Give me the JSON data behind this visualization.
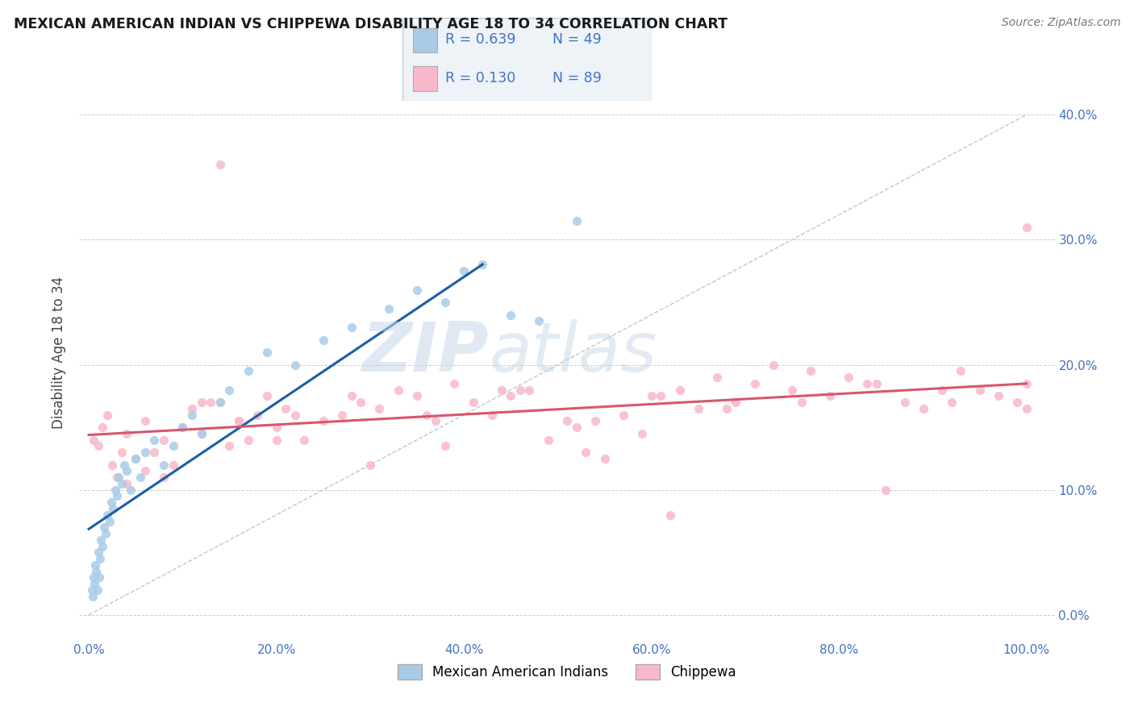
{
  "title": "MEXICAN AMERICAN INDIAN VS CHIPPEWA DISABILITY AGE 18 TO 34 CORRELATION CHART",
  "source": "Source: ZipAtlas.com",
  "ylabel": "Disability Age 18 to 34",
  "xticklabels": [
    "0.0%",
    "20.0%",
    "40.0%",
    "60.0%",
    "80.0%",
    "100.0%"
  ],
  "yticklabels": [
    "0.0%",
    "10.0%",
    "20.0%",
    "30.0%",
    "40.0%"
  ],
  "blue_fill": "#a8cce8",
  "pink_fill": "#f9b8ca",
  "blue_line_color": "#1a5fa8",
  "pink_line_color": "#d9556e",
  "diag_color": "#b8c8d8",
  "grid_color": "#cccccc",
  "text_color": "#4472c4",
  "title_color": "#1a1a1a",
  "legend_label1": "Mexican American Indians",
  "legend_label2": "Chippewa",
  "R1": "0.639",
  "N1": "49",
  "R2": "0.130",
  "N2": "89",
  "watermark_zip": "ZIP",
  "watermark_atlas": "atlas",
  "blue_x": [
    0.3,
    0.4,
    0.5,
    0.6,
    0.7,
    0.8,
    0.9,
    1.0,
    1.1,
    1.2,
    1.3,
    1.5,
    1.6,
    1.8,
    2.0,
    2.2,
    2.4,
    2.6,
    2.8,
    3.0,
    3.2,
    3.5,
    3.8,
    4.0,
    4.5,
    5.0,
    5.5,
    6.0,
    7.0,
    8.0,
    9.0,
    10.0,
    11.0,
    12.0,
    14.0,
    15.0,
    17.0,
    19.0,
    22.0,
    25.0,
    28.0,
    32.0,
    35.0,
    38.0,
    40.0,
    42.0,
    45.0,
    48.0,
    52.0
  ],
  "blue_y": [
    2.0,
    1.5,
    3.0,
    2.5,
    4.0,
    3.5,
    2.0,
    5.0,
    3.0,
    4.5,
    6.0,
    5.5,
    7.0,
    6.5,
    8.0,
    7.5,
    9.0,
    8.5,
    10.0,
    9.5,
    11.0,
    10.5,
    12.0,
    11.5,
    10.0,
    12.5,
    11.0,
    13.0,
    14.0,
    12.0,
    13.5,
    15.0,
    16.0,
    14.5,
    17.0,
    18.0,
    19.5,
    21.0,
    20.0,
    22.0,
    23.0,
    24.5,
    26.0,
    25.0,
    27.5,
    28.0,
    24.0,
    23.5,
    31.5
  ],
  "pink_x": [
    0.5,
    1.0,
    1.5,
    2.0,
    2.5,
    3.0,
    3.5,
    4.0,
    5.0,
    6.0,
    7.0,
    8.0,
    9.0,
    10.0,
    11.0,
    12.0,
    13.0,
    14.0,
    15.0,
    16.0,
    17.0,
    18.0,
    19.0,
    20.0,
    21.0,
    23.0,
    25.0,
    27.0,
    29.0,
    31.0,
    33.0,
    35.0,
    37.0,
    39.0,
    41.0,
    43.0,
    45.0,
    47.0,
    49.0,
    51.0,
    53.0,
    55.0,
    57.0,
    59.0,
    61.0,
    63.0,
    65.0,
    67.0,
    69.0,
    71.0,
    73.0,
    75.0,
    77.0,
    79.0,
    81.0,
    83.0,
    85.0,
    87.0,
    89.0,
    91.0,
    93.0,
    95.0,
    97.0,
    99.0,
    100.0,
    4.0,
    8.0,
    12.0,
    16.0,
    20.0,
    28.0,
    36.0,
    44.0,
    52.0,
    60.0,
    68.0,
    76.0,
    84.0,
    92.0,
    100.0,
    6.0,
    14.0,
    22.0,
    30.0,
    38.0,
    46.0,
    54.0,
    62.0,
    100.0
  ],
  "pink_y": [
    14.0,
    13.5,
    15.0,
    16.0,
    12.0,
    11.0,
    13.0,
    14.5,
    12.5,
    11.5,
    13.0,
    14.0,
    12.0,
    15.0,
    16.5,
    14.5,
    17.0,
    36.0,
    13.5,
    15.5,
    14.0,
    16.0,
    17.5,
    15.0,
    16.5,
    14.0,
    15.5,
    16.0,
    17.0,
    16.5,
    18.0,
    17.5,
    15.5,
    18.5,
    17.0,
    16.0,
    17.5,
    18.0,
    14.0,
    15.5,
    13.0,
    12.5,
    16.0,
    14.5,
    17.5,
    18.0,
    16.5,
    19.0,
    17.0,
    18.5,
    20.0,
    18.0,
    19.5,
    17.5,
    19.0,
    18.5,
    10.0,
    17.0,
    16.5,
    18.0,
    19.5,
    18.0,
    17.5,
    17.0,
    18.5,
    10.5,
    11.0,
    17.0,
    15.5,
    14.0,
    17.5,
    16.0,
    18.0,
    15.0,
    17.5,
    16.5,
    17.0,
    18.5,
    17.0,
    31.0,
    15.5,
    17.0,
    16.0,
    12.0,
    13.5,
    18.0,
    15.5,
    8.0,
    16.5
  ]
}
